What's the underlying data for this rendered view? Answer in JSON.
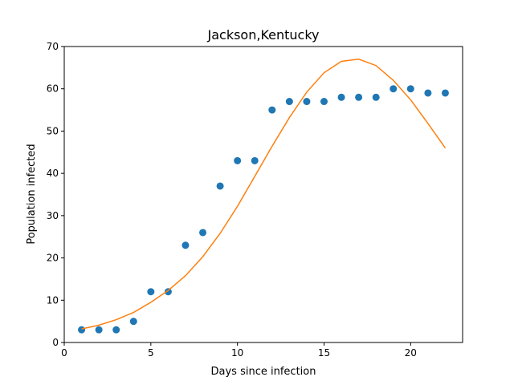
{
  "chart_data": {
    "type": "scatter",
    "title": "Jackson,Kentucky",
    "xlabel": "Days since infection",
    "ylabel": "Population infected",
    "xlim": [
      0,
      23
    ],
    "ylim": [
      0,
      70
    ],
    "xticks": [
      0,
      5,
      10,
      15,
      20
    ],
    "yticks": [
      0,
      10,
      20,
      30,
      40,
      50,
      60,
      70
    ],
    "grid": false,
    "legend": "none",
    "series": [
      {
        "kind": "scatter",
        "color": "#1f77b4",
        "x": [
          1,
          2,
          3,
          4,
          5,
          6,
          7,
          8,
          9,
          10,
          11,
          12,
          13,
          14,
          15,
          16,
          17,
          18,
          19,
          20,
          21,
          22
        ],
        "y": [
          3,
          3,
          3,
          5,
          12,
          12,
          23,
          26,
          37,
          43,
          43,
          55,
          57,
          57,
          57,
          58,
          58,
          58,
          60,
          60,
          59,
          59
        ]
      },
      {
        "kind": "line",
        "color": "#ff7f0e",
        "x": [
          1,
          2,
          3,
          4,
          5,
          6,
          7,
          8,
          9,
          10,
          11,
          12,
          13,
          14,
          15,
          16,
          17,
          18,
          19,
          20,
          21,
          22
        ],
        "y": [
          3.2,
          4.1,
          5.4,
          7.1,
          9.5,
          12.3,
          15.8,
          20.3,
          25.8,
          32.2,
          39.3,
          46.4,
          53.2,
          59.2,
          63.8,
          66.5,
          67.0,
          65.5,
          62.0,
          57.4,
          51.8,
          46.0
        ]
      }
    ]
  }
}
